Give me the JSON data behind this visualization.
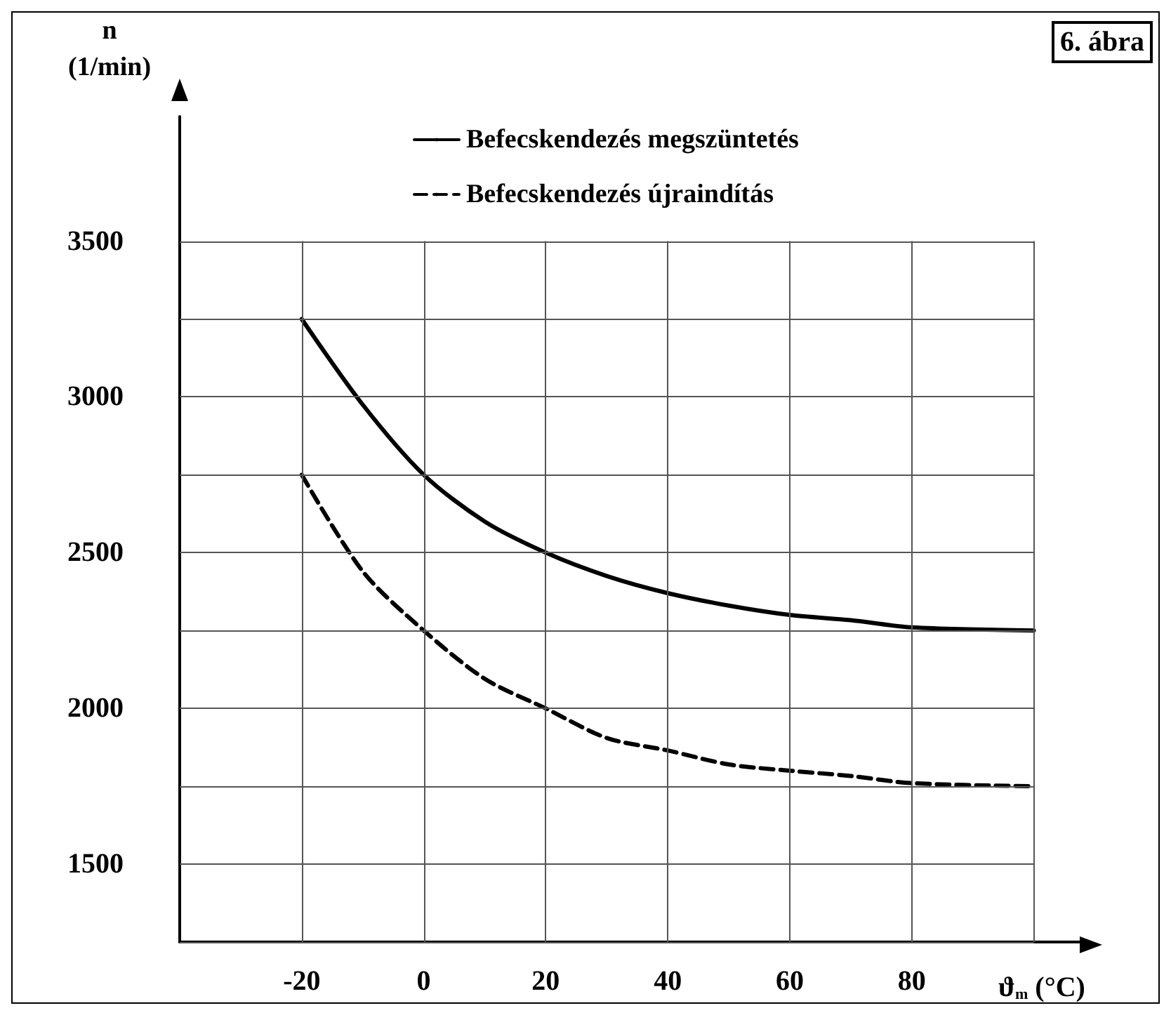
{
  "chart_data": {
    "type": "line",
    "annotations": [
      "6. ábra"
    ],
    "xlabel": "ϑ$_{m}$ (°C)",
    "ylabel": "n\n(1/min)",
    "x": [
      -20,
      -10,
      0,
      10,
      20,
      30,
      40,
      50,
      60,
      70,
      80,
      100
    ],
    "series": [
      {
        "name": "Befecskendezés megszüntetés",
        "color": "#000000",
        "line_style": "solid",
        "values": [
          3250,
          2975,
          2750,
          2600,
          2500,
          2425,
          2370,
          2330,
          2300,
          2283,
          2260,
          2250
        ]
      },
      {
        "name": "Befecskendezés újraindítás",
        "color": "#000000",
        "line_style": "dashed",
        "values": [
          2750,
          2440,
          2250,
          2095,
          2000,
          1905,
          1865,
          1820,
          1800,
          1783,
          1760,
          1750
        ]
      }
    ],
    "xlim": [
      -40,
      108
    ],
    "ylim": [
      1250,
      3900
    ],
    "xticks": [
      -20,
      0,
      20,
      40,
      60,
      80,
      {
        "value": 100,
        "label": null
      }
    ],
    "yticks": [
      {
        "value": 1250,
        "label": null
      },
      1500,
      {
        "value": 1750,
        "label": null
      },
      2000,
      {
        "value": 2250,
        "label": null
      },
      2500,
      {
        "value": 2750,
        "label": null
      },
      3000,
      {
        "value": 3250,
        "label": null
      },
      3500
    ],
    "grid": true,
    "legend": "top",
    "marker": "none"
  }
}
